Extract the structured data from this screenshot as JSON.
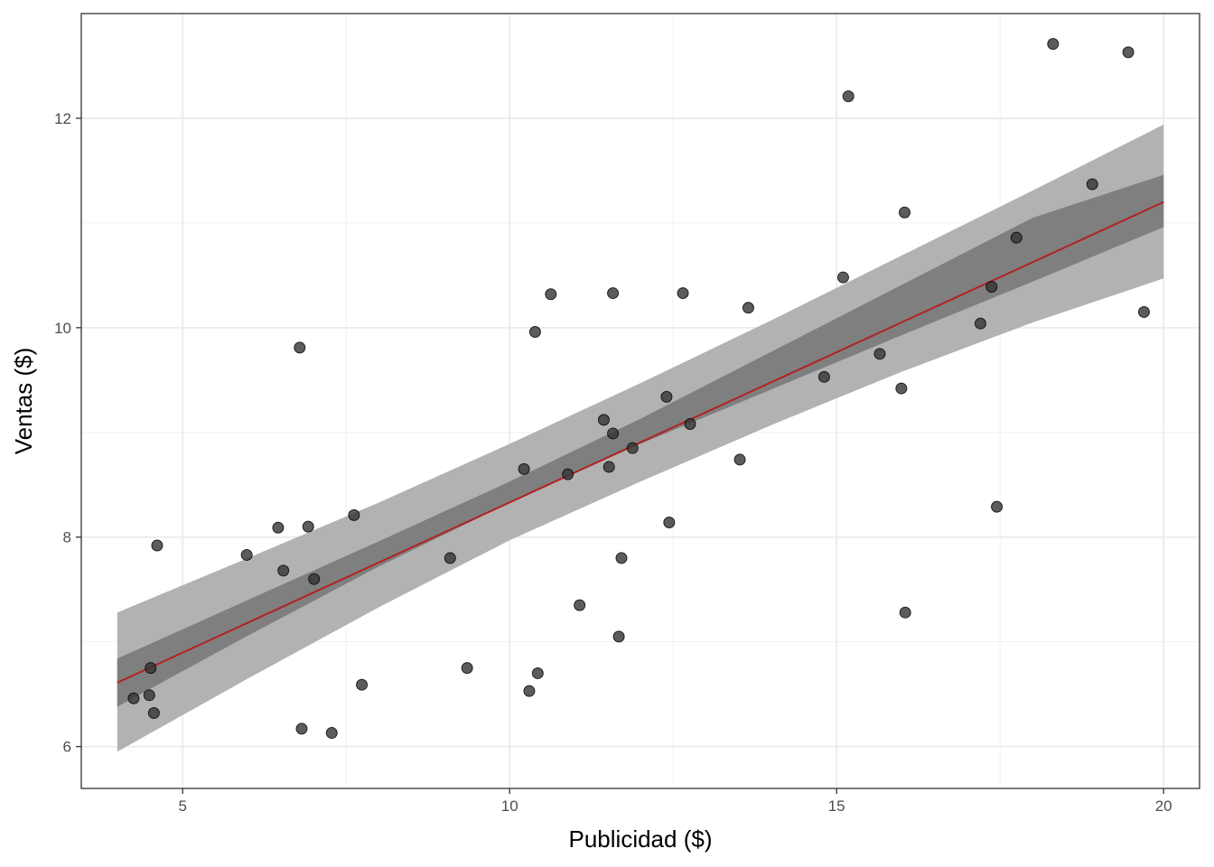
{
  "chart_data": {
    "type": "scatter",
    "title": "",
    "xlabel": "Publicidad ($)",
    "ylabel": "Ventas ($)",
    "xlim": [
      3.45,
      20.55
    ],
    "ylim": [
      5.6,
      13.0
    ],
    "x_ticks": [
      5,
      10,
      15,
      20
    ],
    "y_ticks": [
      6,
      8,
      10,
      12
    ],
    "x_tick_labels": [
      "5",
      "10",
      "15",
      "20"
    ],
    "y_tick_labels": [
      "6",
      "8",
      "10",
      "12"
    ],
    "grid": true,
    "theme": "bw",
    "point_color": "#333333",
    "fit_line_color": "#b22222",
    "ci_band_color": "#7f7f7f",
    "pi_band_color": "#b2b2b2",
    "points": [
      {
        "x": 4.25,
        "y": 6.46
      },
      {
        "x": 4.49,
        "y": 6.49
      },
      {
        "x": 4.51,
        "y": 6.75
      },
      {
        "x": 4.56,
        "y": 6.32
      },
      {
        "x": 4.61,
        "y": 7.92
      },
      {
        "x": 5.98,
        "y": 7.83
      },
      {
        "x": 6.46,
        "y": 8.09
      },
      {
        "x": 6.54,
        "y": 7.68
      },
      {
        "x": 6.79,
        "y": 9.81
      },
      {
        "x": 6.82,
        "y": 6.17
      },
      {
        "x": 6.92,
        "y": 8.1
      },
      {
        "x": 7.01,
        "y": 7.6
      },
      {
        "x": 7.28,
        "y": 6.13
      },
      {
        "x": 7.62,
        "y": 8.21
      },
      {
        "x": 7.74,
        "y": 6.59
      },
      {
        "x": 9.09,
        "y": 7.8
      },
      {
        "x": 9.35,
        "y": 6.75
      },
      {
        "x": 10.22,
        "y": 8.65
      },
      {
        "x": 10.3,
        "y": 6.53
      },
      {
        "x": 10.39,
        "y": 9.96
      },
      {
        "x": 10.43,
        "y": 6.7
      },
      {
        "x": 10.63,
        "y": 10.32
      },
      {
        "x": 10.89,
        "y": 8.6
      },
      {
        "x": 11.07,
        "y": 7.35
      },
      {
        "x": 11.44,
        "y": 9.12
      },
      {
        "x": 11.52,
        "y": 8.67
      },
      {
        "x": 11.58,
        "y": 8.99
      },
      {
        "x": 11.58,
        "y": 10.33
      },
      {
        "x": 11.67,
        "y": 7.05
      },
      {
        "x": 11.71,
        "y": 7.8
      },
      {
        "x": 11.88,
        "y": 8.85
      },
      {
        "x": 12.4,
        "y": 9.34
      },
      {
        "x": 12.44,
        "y": 8.14
      },
      {
        "x": 12.65,
        "y": 10.33
      },
      {
        "x": 12.76,
        "y": 9.08
      },
      {
        "x": 13.52,
        "y": 8.74
      },
      {
        "x": 13.65,
        "y": 10.19
      },
      {
        "x": 14.81,
        "y": 9.53
      },
      {
        "x": 15.1,
        "y": 10.48
      },
      {
        "x": 15.18,
        "y": 12.21
      },
      {
        "x": 15.66,
        "y": 9.75
      },
      {
        "x": 15.99,
        "y": 9.42
      },
      {
        "x": 16.04,
        "y": 11.1
      },
      {
        "x": 16.05,
        "y": 7.28
      },
      {
        "x": 17.2,
        "y": 10.04
      },
      {
        "x": 17.37,
        "y": 10.39
      },
      {
        "x": 17.45,
        "y": 8.29
      },
      {
        "x": 17.75,
        "y": 10.86
      },
      {
        "x": 18.31,
        "y": 12.71
      },
      {
        "x": 18.91,
        "y": 11.37
      },
      {
        "x": 19.46,
        "y": 12.63
      },
      {
        "x": 19.7,
        "y": 10.15
      }
    ],
    "fit_line": {
      "x": [
        4,
        20
      ],
      "y": [
        6.61,
        11.2
      ]
    },
    "confidence_band": {
      "x": [
        4,
        6,
        8,
        10,
        12,
        14,
        16,
        18,
        20
      ],
      "lower": [
        6.38,
        7.06,
        7.72,
        8.33,
        8.89,
        9.41,
        9.93,
        10.44,
        10.96
      ],
      "upper": [
        6.84,
        7.4,
        7.96,
        8.53,
        9.13,
        9.77,
        10.41,
        11.05,
        11.46
      ]
    },
    "prediction_band": {
      "x": [
        4,
        6,
        8,
        10,
        12,
        14,
        16,
        18,
        20
      ],
      "lower": [
        5.95,
        6.65,
        7.33,
        7.97,
        8.53,
        9.07,
        9.58,
        10.05,
        10.47
      ],
      "upper": [
        7.28,
        7.8,
        8.33,
        8.89,
        9.47,
        10.07,
        10.69,
        11.31,
        11.94
      ]
    }
  }
}
